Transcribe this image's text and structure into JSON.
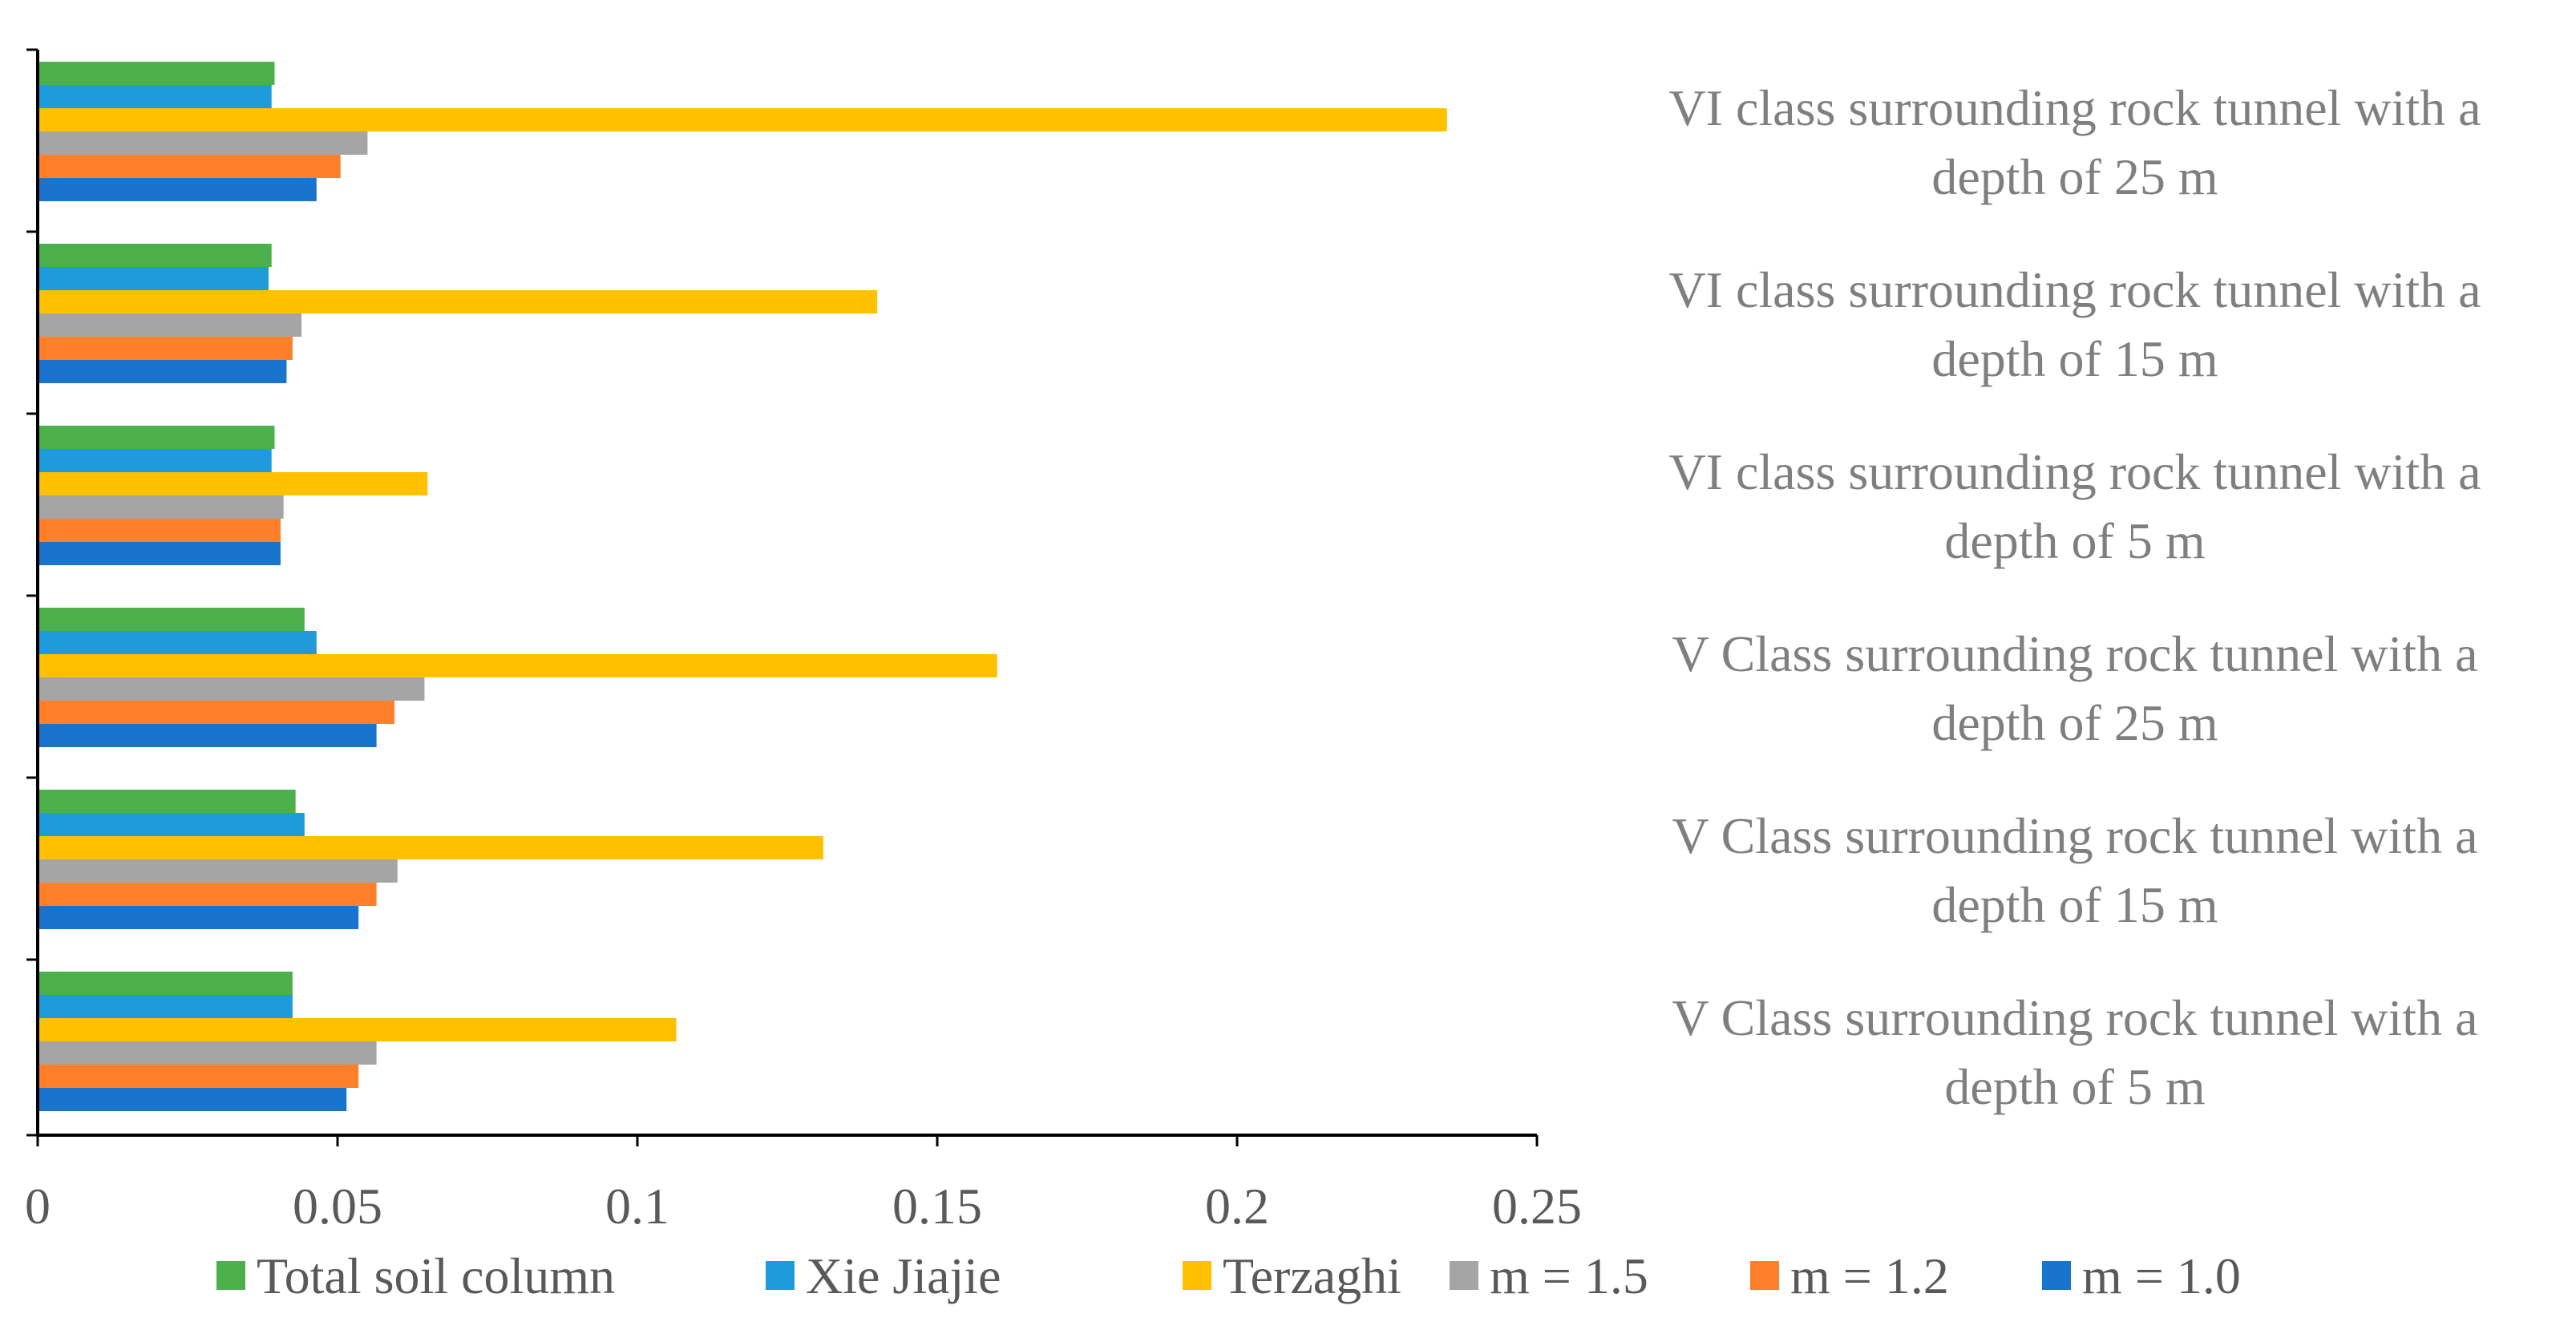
{
  "chart_data": {
    "type": "bar",
    "orientation": "horizontal",
    "title": "",
    "xlabel": "",
    "ylabel": "",
    "xlim": [
      0,
      0.25
    ],
    "x_ticks": [
      0,
      0.05,
      0.1,
      0.15,
      0.2,
      0.25
    ],
    "x_tick_labels": [
      "0",
      "0.05",
      "0.1",
      "0.15",
      "0.2",
      "0.25"
    ],
    "grid": false,
    "legend_position": "bottom",
    "categories": [
      [
        "VI class surrounding rock tunnel with a",
        "depth of 25 m"
      ],
      [
        "VI class surrounding rock tunnel with a",
        "depth of 15 m"
      ],
      [
        "VI class surrounding rock tunnel with a",
        "depth of 5 m"
      ],
      [
        "V Class surrounding rock tunnel with a",
        "depth of 25 m"
      ],
      [
        "V Class surrounding rock tunnel with a",
        "depth of 15 m"
      ],
      [
        "V Class surrounding rock tunnel with a",
        "depth of 5 m"
      ]
    ],
    "series": [
      {
        "name": "Total soil column",
        "color": "#4CB04C",
        "values": [
          0.0395,
          0.039,
          0.0395,
          0.0445,
          0.043,
          0.0425
        ]
      },
      {
        "name": "Xie Jiajie",
        "color": "#1F9BDB",
        "values": [
          0.039,
          0.0385,
          0.039,
          0.0465,
          0.0445,
          0.0425
        ]
      },
      {
        "name": "Terzaghi",
        "color": "#FFC000",
        "values": [
          0.235,
          0.14,
          0.065,
          0.16,
          0.131,
          0.1065
        ]
      },
      {
        "name": "m = 1.5",
        "color": "#A5A5A5",
        "values": [
          0.055,
          0.044,
          0.041,
          0.0645,
          0.06,
          0.0565
        ]
      },
      {
        "name": "m = 1.2",
        "color": "#FF7F2A",
        "values": [
          0.0505,
          0.0425,
          0.0405,
          0.0595,
          0.0565,
          0.0535
        ]
      },
      {
        "name": "m = 1.0",
        "color": "#1874CD",
        "values": [
          0.0465,
          0.0415,
          0.0405,
          0.0565,
          0.0535,
          0.0515
        ]
      }
    ],
    "legend_order": [
      "Total soil column",
      "Xie Jiajie",
      "Terzaghi",
      "m = 1.5",
      "m = 1.2",
      "m = 1.0"
    ]
  }
}
